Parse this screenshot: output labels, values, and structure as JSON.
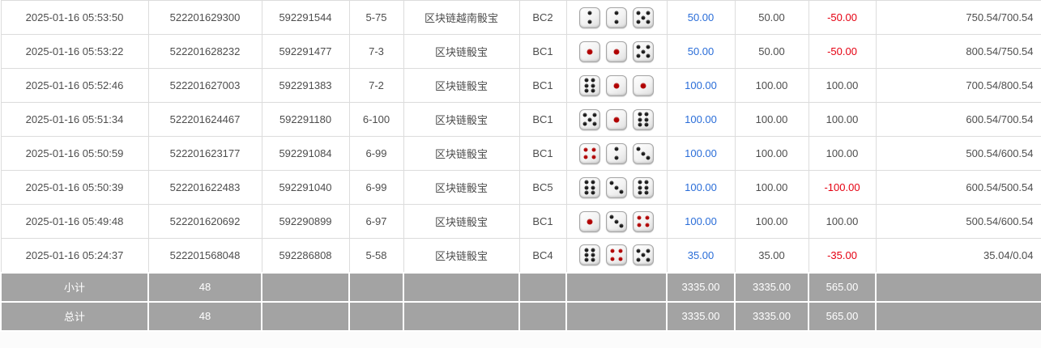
{
  "colors": {
    "bet_amount_blue": "#2a6dd8",
    "negative_red": "#e50011",
    "text_gray": "#4d4d4d",
    "border_gray": "#dcdcdc",
    "summary_bg_gray": "#a3a3a3",
    "summary_text_white": "#ffffff",
    "pip_black": "#1c1c1c",
    "pip_red": "#b00000"
  },
  "table": {
    "rows": [
      {
        "time": "2025-01-16 05:53:50",
        "order_id": "522201629300",
        "round_id": "592291544",
        "period": "5-75",
        "game": "区块链越南骰宝",
        "bet_code": "BC2",
        "dice": [
          2,
          2,
          5
        ],
        "bet_amount": "50.00",
        "valid_amount": "50.00",
        "win_loss": "-50.00",
        "balance": "750.54/700.54"
      },
      {
        "time": "2025-01-16 05:53:22",
        "order_id": "522201628232",
        "round_id": "592291477",
        "period": "7-3",
        "game": "区块链骰宝",
        "bet_code": "BC1",
        "dice": [
          1,
          1,
          5
        ],
        "bet_amount": "50.00",
        "valid_amount": "50.00",
        "win_loss": "-50.00",
        "balance": "800.54/750.54"
      },
      {
        "time": "2025-01-16 05:52:46",
        "order_id": "522201627003",
        "round_id": "592291383",
        "period": "7-2",
        "game": "区块链骰宝",
        "bet_code": "BC1",
        "dice": [
          6,
          1,
          1
        ],
        "bet_amount": "100.00",
        "valid_amount": "100.00",
        "win_loss": "100.00",
        "balance": "700.54/800.54"
      },
      {
        "time": "2025-01-16 05:51:34",
        "order_id": "522201624467",
        "round_id": "592291180",
        "period": "6-100",
        "game": "区块链骰宝",
        "bet_code": "BC1",
        "dice": [
          5,
          1,
          6
        ],
        "bet_amount": "100.00",
        "valid_amount": "100.00",
        "win_loss": "100.00",
        "balance": "600.54/700.54"
      },
      {
        "time": "2025-01-16 05:50:59",
        "order_id": "522201623177",
        "round_id": "592291084",
        "period": "6-99",
        "game": "区块链骰宝",
        "bet_code": "BC1",
        "dice": [
          4,
          2,
          3
        ],
        "bet_amount": "100.00",
        "valid_amount": "100.00",
        "win_loss": "100.00",
        "balance": "500.54/600.54"
      },
      {
        "time": "2025-01-16 05:50:39",
        "order_id": "522201622483",
        "round_id": "592291040",
        "period": "6-99",
        "game": "区块链骰宝",
        "bet_code": "BC5",
        "dice": [
          6,
          3,
          6
        ],
        "bet_amount": "100.00",
        "valid_amount": "100.00",
        "win_loss": "-100.00",
        "balance": "600.54/500.54"
      },
      {
        "time": "2025-01-16 05:49:48",
        "order_id": "522201620692",
        "round_id": "592290899",
        "period": "6-97",
        "game": "区块链骰宝",
        "bet_code": "BC1",
        "dice": [
          1,
          3,
          4
        ],
        "bet_amount": "100.00",
        "valid_amount": "100.00",
        "win_loss": "100.00",
        "balance": "500.54/600.54"
      },
      {
        "time": "2025-01-16 05:24:37",
        "order_id": "522201568048",
        "round_id": "592286808",
        "period": "5-58",
        "game": "区块链骰宝",
        "bet_code": "BC4",
        "dice": [
          6,
          4,
          5
        ],
        "bet_amount": "35.00",
        "valid_amount": "35.00",
        "win_loss": "-35.00",
        "balance": "35.04/0.04"
      }
    ],
    "subtotal": {
      "label": "小计",
      "count": "48",
      "bet_total": "3335.00",
      "valid_total": "3335.00",
      "winloss_total": "565.00"
    },
    "total": {
      "label": "总计",
      "count": "48",
      "bet_total": "3335.00",
      "valid_total": "3335.00",
      "winloss_total": "565.00"
    }
  }
}
